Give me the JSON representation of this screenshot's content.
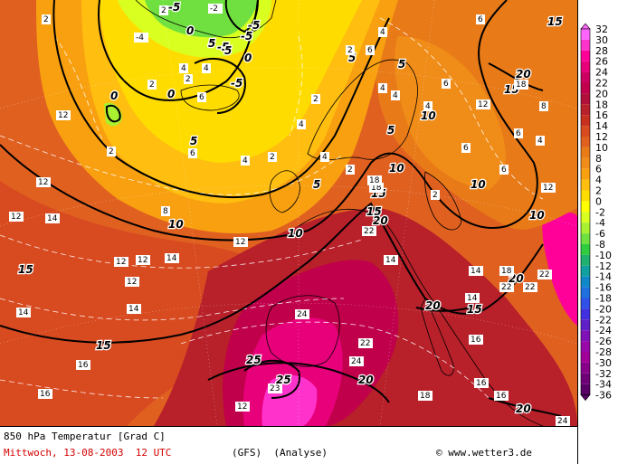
{
  "caption": {
    "title": "850 hPa Temperatur [Grad C]",
    "date_line": "Mittwoch, 13-08-2003  12 UTC",
    "model": "(GFS)  (Analyse)",
    "copyright": "© www.wetter3.de"
  },
  "legend": {
    "labels": [
      "32",
      "30",
      "28",
      "26",
      "24",
      "22",
      "20",
      "18",
      "16",
      "14",
      "12",
      "10",
      "8",
      "6",
      "4",
      "2",
      "0",
      "-2",
      "-4",
      "-6",
      "-8",
      "-10",
      "-12",
      "-14",
      "-16",
      "-18",
      "-20",
      "-22",
      "-24",
      "-26",
      "-28",
      "-30",
      "-32",
      "-34",
      "-36"
    ],
    "colors": [
      "#ff66ff",
      "#ff33cc",
      "#ff0099",
      "#e8007a",
      "#cc0060",
      "#c0004a",
      "#b0103a",
      "#b8202a",
      "#c83020",
      "#d84a20",
      "#e06020",
      "#e87a18",
      "#f08c18",
      "#f8a010",
      "#ffbe10",
      "#ffdc00",
      "#ffff00",
      "#d8ff20",
      "#a8f030",
      "#70e040",
      "#30cc40",
      "#20b070",
      "#10a0a0",
      "#1088c8",
      "#2070e0",
      "#3050e8",
      "#4030e0",
      "#6020c8",
      "#8010b8",
      "#9808a8",
      "#a00098",
      "#880088",
      "#700078",
      "#580068"
    ]
  },
  "map_labels": {
    "isotherms": [
      "-5",
      "-5",
      "0",
      "0",
      "0",
      "0",
      "-5",
      "-5",
      "-5",
      "5",
      "5",
      "5",
      "5",
      "5",
      "5",
      "5",
      "10",
      "10",
      "10",
      "10",
      "10",
      "10",
      "15",
      "15",
      "15",
      "15",
      "15",
      "15",
      "15",
      "20",
      "20",
      "20",
      "20",
      "20",
      "20",
      "25",
      "25"
    ],
    "values": [
      "2",
      "2",
      "-2",
      "-4",
      "2",
      "4",
      "4",
      "2",
      "2",
      "6",
      "4",
      "6",
      "4",
      "6",
      "2",
      "4",
      "4",
      "2",
      "6",
      "4",
      "4",
      "2",
      "6",
      "4",
      "2",
      "4",
      "12",
      "12",
      "6",
      "8",
      "12",
      "6",
      "6",
      "2",
      "14",
      "12",
      "8",
      "12",
      "14",
      "12",
      "12",
      "14",
      "12",
      "14",
      "14",
      "16",
      "18",
      "16",
      "14",
      "16",
      "22",
      "22",
      "18",
      "24",
      "22",
      "24",
      "23",
      "18",
      "18",
      "16",
      "24",
      "12",
      "14",
      "16",
      "22",
      "12",
      "18",
      "22"
    ]
  }
}
